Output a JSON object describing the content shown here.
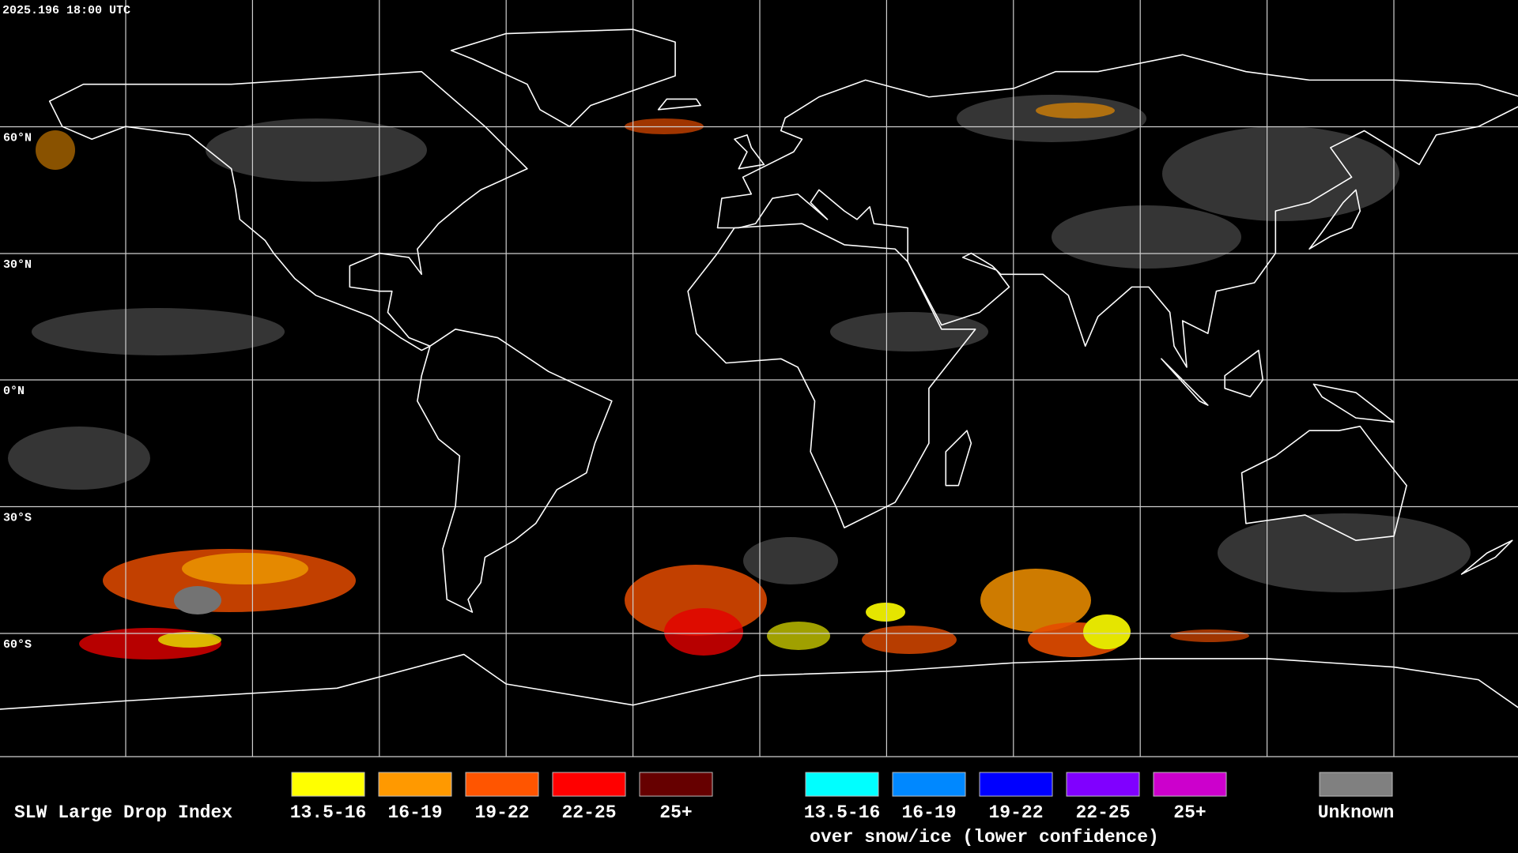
{
  "header": {
    "timestamp": "2025.196 18:00 UTC"
  },
  "map": {
    "latitude_labels": [
      "60°N",
      "30°N",
      "0°N",
      "30°S",
      "60°S"
    ]
  },
  "legend": {
    "title": "SLW Large Drop Index",
    "items": [
      {
        "label": "13.5-16",
        "color": "#ffff00"
      },
      {
        "label": "16-19",
        "color": "#ff9900"
      },
      {
        "label": "19-22",
        "color": "#ff5500"
      },
      {
        "label": "22-25",
        "color": "#ff0000"
      },
      {
        "label": "25+",
        "color": "#660000"
      }
    ],
    "snow_items": [
      {
        "label": "13.5-16",
        "color": "#00ffff"
      },
      {
        "label": "16-19",
        "color": "#0088ff"
      },
      {
        "label": "19-22",
        "color": "#0000ff"
      },
      {
        "label": "22-25",
        "color": "#8000ff"
      },
      {
        "label": "25+",
        "color": "#cc00cc"
      }
    ],
    "snow_note": "over snow/ice (lower confidence)",
    "unknown": {
      "label": "Unknown",
      "color": "#808080"
    }
  }
}
